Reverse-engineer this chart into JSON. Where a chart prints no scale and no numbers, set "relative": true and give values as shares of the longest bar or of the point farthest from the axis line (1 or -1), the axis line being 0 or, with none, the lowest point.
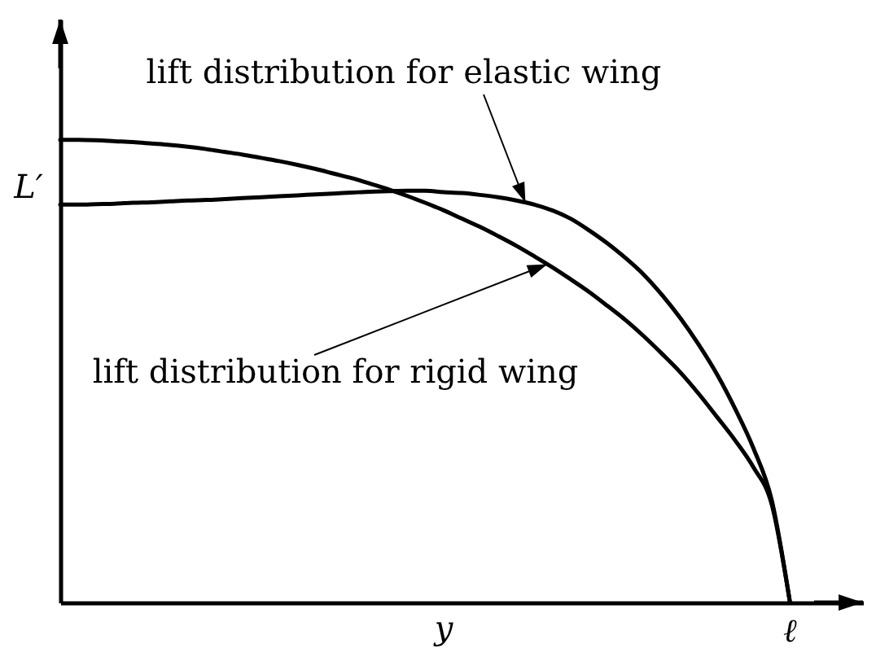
{
  "chart_data": {
    "type": "line",
    "relative": true,
    "xlabel": "y",
    "ylabel": "L′",
    "line_style": "solid",
    "categories": [
      null,
      null,
      null,
      null,
      null,
      null,
      null,
      null,
      null,
      null,
      null,
      null,
      null,
      null,
      null,
      null,
      null,
      null,
      null,
      null,
      null,
      null,
      null,
      null,
      null,
      null,
      null,
      null,
      null,
      null,
      null,
      null,
      null,
      null,
      null,
      null,
      null,
      null,
      null,
      null,
      null
    ],
    "series": [
      {
        "color": "#000000",
        "values": [
          0.86,
          0.86,
          0.861,
          0.862,
          0.864,
          0.865,
          0.867,
          0.869,
          0.87,
          0.872,
          0.874,
          0.876,
          0.878,
          0.88,
          0.882,
          0.884,
          0.886,
          0.888,
          0.889,
          0.89,
          0.89,
          0.887,
          0.885,
          0.881,
          0.876,
          0.869,
          0.86,
          0.847,
          0.829,
          0.804,
          0.776,
          0.744,
          0.708,
          0.664,
          0.614,
          0.557,
          0.493,
          0.418,
          0.333,
          0.221,
          0
        ]
      },
      {
        "color": "#000000",
        "values": [
          1,
          1,
          0.999,
          0.997,
          0.995,
          0.992,
          0.989,
          0.985,
          0.98,
          0.974,
          0.968,
          0.961,
          0.954,
          0.946,
          0.937,
          0.927,
          0.917,
          0.905,
          0.893,
          0.879,
          0.864,
          0.848,
          0.83,
          0.812,
          0.792,
          0.771,
          0.748,
          0.724,
          0.698,
          0.671,
          0.641,
          0.61,
          0.575,
          0.537,
          0.497,
          0.451,
          0.401,
          0.35,
          0.292,
          0.212,
          0
        ]
      }
    ],
    "annotations": [
      "lift distribution for elastic wing",
      "lift distribution for rigid wing",
      "ℓ"
    ]
  }
}
